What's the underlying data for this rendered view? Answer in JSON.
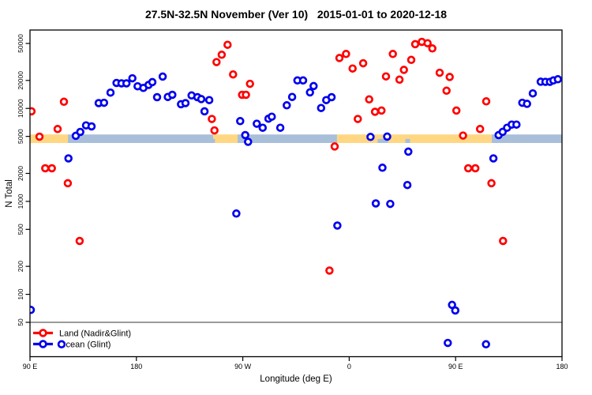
{
  "title": "27.5N-32.5N November (Ver 10)   2015-01-01 to 2020-12-18",
  "legend": {
    "items": [
      {
        "label": "Land (Nadir&Glint)",
        "color": "#FF0000"
      },
      {
        "label": "Ocean (Glint)",
        "color": "#0000EE"
      }
    ]
  },
  "colors": {
    "land": "#FF0000",
    "ocean": "#0000EE",
    "band_land": "#FFD783",
    "band_ocean": "#A9BFD9",
    "reference_line": "#787878",
    "axis": "#000000"
  },
  "chart_data": {
    "type": "scatter",
    "title": "27.5N-32.5N November (Ver 10)   2015-01-01 to 2020-12-18",
    "xlabel": "Longitude (deg E)",
    "ylabel": "N Total",
    "x_axis": {
      "range": [
        90,
        540
      ],
      "ticks": [
        90,
        180,
        270,
        360,
        450,
        540
      ],
      "tick_labels": [
        "90 E",
        "180",
        "90 W",
        "0",
        "90 E",
        "180"
      ],
      "note": "longitude wraps eastward: 90E to 180 to 90W to 0 to 90E to 180"
    },
    "y_axis": {
      "scale": "log",
      "range": [
        21,
        69000
      ],
      "ticks": [
        50,
        100,
        200,
        500,
        1000,
        2000,
        5000,
        10000,
        20000,
        50000
      ],
      "tick_labels": [
        "50",
        "100",
        "200",
        "500",
        "1000",
        "2000",
        "5000",
        "10000",
        "20000",
        "50000"
      ]
    },
    "reference_line_y": 50,
    "grid": false,
    "legend_position": "bottom-left",
    "surface_band": {
      "value": 5000,
      "description": "horizontal strip at N=5000 showing land (orange) vs ocean (blue) longitudes",
      "segments": [
        {
          "surface": "land",
          "from": 90.0,
          "to": 122.1
        },
        {
          "surface": "ocean",
          "from": 122.1,
          "to": 244.9
        },
        {
          "surface": "land",
          "from": 244.9,
          "to": 265.6
        },
        {
          "surface": "ocean",
          "from": 265.6,
          "to": 349.7
        },
        {
          "surface": "land",
          "from": 349.7,
          "to": 480.6
        },
        {
          "surface": "ocean",
          "from": 480.6,
          "to": 540.0
        }
      ],
      "ocean_notches": [
        {
          "from": 241.5,
          "to": 246.5
        },
        {
          "from": 384.0,
          "to": 393.0
        },
        {
          "from": 407.5,
          "to": 411.5
        }
      ]
    },
    "series": [
      {
        "name": "Land (Nadir&Glint)",
        "color": "#FF0000",
        "marker": "open-circle",
        "points": [
          [
            91.3,
            9300
          ],
          [
            98.0,
            4970
          ],
          [
            102.9,
            2270
          ],
          [
            108.5,
            2270
          ],
          [
            113.4,
            6000
          ],
          [
            118.7,
            11800
          ],
          [
            122.0,
            1570
          ],
          [
            132.0,
            375
          ],
          [
            243.8,
            7700
          ],
          [
            246.0,
            5800
          ],
          [
            247.8,
            31500
          ],
          [
            252.2,
            37800
          ],
          [
            257.1,
            48400
          ],
          [
            261.8,
            23200
          ],
          [
            269.4,
            14000
          ],
          [
            272.7,
            14000
          ],
          [
            276.1,
            18400
          ],
          [
            343.3,
            180
          ],
          [
            347.7,
            3900
          ],
          [
            351.7,
            34900
          ],
          [
            357.3,
            38500
          ],
          [
            362.9,
            26900
          ],
          [
            367.3,
            7700
          ],
          [
            371.8,
            30600
          ],
          [
            376.9,
            12500
          ],
          [
            381.8,
            9200
          ],
          [
            387.3,
            9500
          ],
          [
            391.1,
            22100
          ],
          [
            396.9,
            38500
          ],
          [
            402.5,
            20400
          ],
          [
            406.3,
            26000
          ],
          [
            412.5,
            33300
          ],
          [
            415.8,
            49100
          ],
          [
            421.4,
            52000
          ],
          [
            426.3,
            50300
          ],
          [
            430.3,
            44200
          ],
          [
            436.5,
            24200
          ],
          [
            442.3,
            15500
          ],
          [
            445.0,
            21800
          ],
          [
            450.7,
            9500
          ],
          [
            456.3,
            5100
          ],
          [
            460.7,
            2270
          ],
          [
            466.7,
            2270
          ],
          [
            470.7,
            6000
          ],
          [
            475.9,
            11900
          ],
          [
            480.3,
            1570
          ],
          [
            490.1,
            375
          ]
        ]
      },
      {
        "name": "Ocean (Glint)",
        "color": "#0000EE",
        "marker": "open-circle",
        "points": [
          [
            90.7,
            68
          ],
          [
            116.7,
            29
          ],
          [
            122.5,
            2900
          ],
          [
            128.7,
            5070
          ],
          [
            132.5,
            5590
          ],
          [
            137.4,
            6570
          ],
          [
            142.1,
            6400
          ],
          [
            148.1,
            11400
          ],
          [
            152.6,
            11500
          ],
          [
            158.1,
            14800
          ],
          [
            163.2,
            18800
          ],
          [
            167.4,
            18600
          ],
          [
            171.6,
            18600
          ],
          [
            176.6,
            21100
          ],
          [
            181.0,
            17300
          ],
          [
            185.9,
            16600
          ],
          [
            190.3,
            17900
          ],
          [
            193.5,
            19200
          ],
          [
            197.5,
            13200
          ],
          [
            202.2,
            22000
          ],
          [
            206.6,
            13300
          ],
          [
            210.4,
            14000
          ],
          [
            217.7,
            11100
          ],
          [
            221.5,
            11400
          ],
          [
            226.7,
            13800
          ],
          [
            231.6,
            13200
          ],
          [
            234.9,
            12600
          ],
          [
            237.6,
            9300
          ],
          [
            241.6,
            12300
          ],
          [
            264.5,
            740
          ],
          [
            267.8,
            7300
          ],
          [
            272.1,
            5170
          ],
          [
            274.5,
            4370
          ],
          [
            281.8,
            6840
          ],
          [
            286.8,
            6200
          ],
          [
            291.7,
            7760
          ],
          [
            294.5,
            8150
          ],
          [
            301.7,
            6200
          ],
          [
            307.2,
            10800
          ],
          [
            311.7,
            13300
          ],
          [
            316.2,
            20000
          ],
          [
            321.0,
            20000
          ],
          [
            326.8,
            14900
          ],
          [
            329.9,
            17400
          ],
          [
            336.2,
            10100
          ],
          [
            340.6,
            12300
          ],
          [
            345.1,
            13200
          ],
          [
            350.0,
            550
          ],
          [
            378.0,
            4940
          ],
          [
            382.5,
            950
          ],
          [
            388.1,
            2300
          ],
          [
            392.1,
            4980
          ],
          [
            394.7,
            940
          ],
          [
            409.2,
            1500
          ],
          [
            410.0,
            3430
          ],
          [
            443.4,
            30
          ],
          [
            447.0,
            77
          ],
          [
            449.7,
            67
          ],
          [
            475.7,
            29
          ],
          [
            482.0,
            2900
          ],
          [
            486.4,
            5170
          ],
          [
            489.8,
            5600
          ],
          [
            493.5,
            6200
          ],
          [
            497.5,
            6700
          ],
          [
            501.5,
            6700
          ],
          [
            506.4,
            11500
          ],
          [
            510.4,
            11200
          ],
          [
            515.3,
            14500
          ],
          [
            522.0,
            19400
          ],
          [
            526.0,
            19300
          ],
          [
            529.8,
            19300
          ],
          [
            532.7,
            20000
          ],
          [
            536.5,
            20600
          ]
        ]
      }
    ]
  }
}
